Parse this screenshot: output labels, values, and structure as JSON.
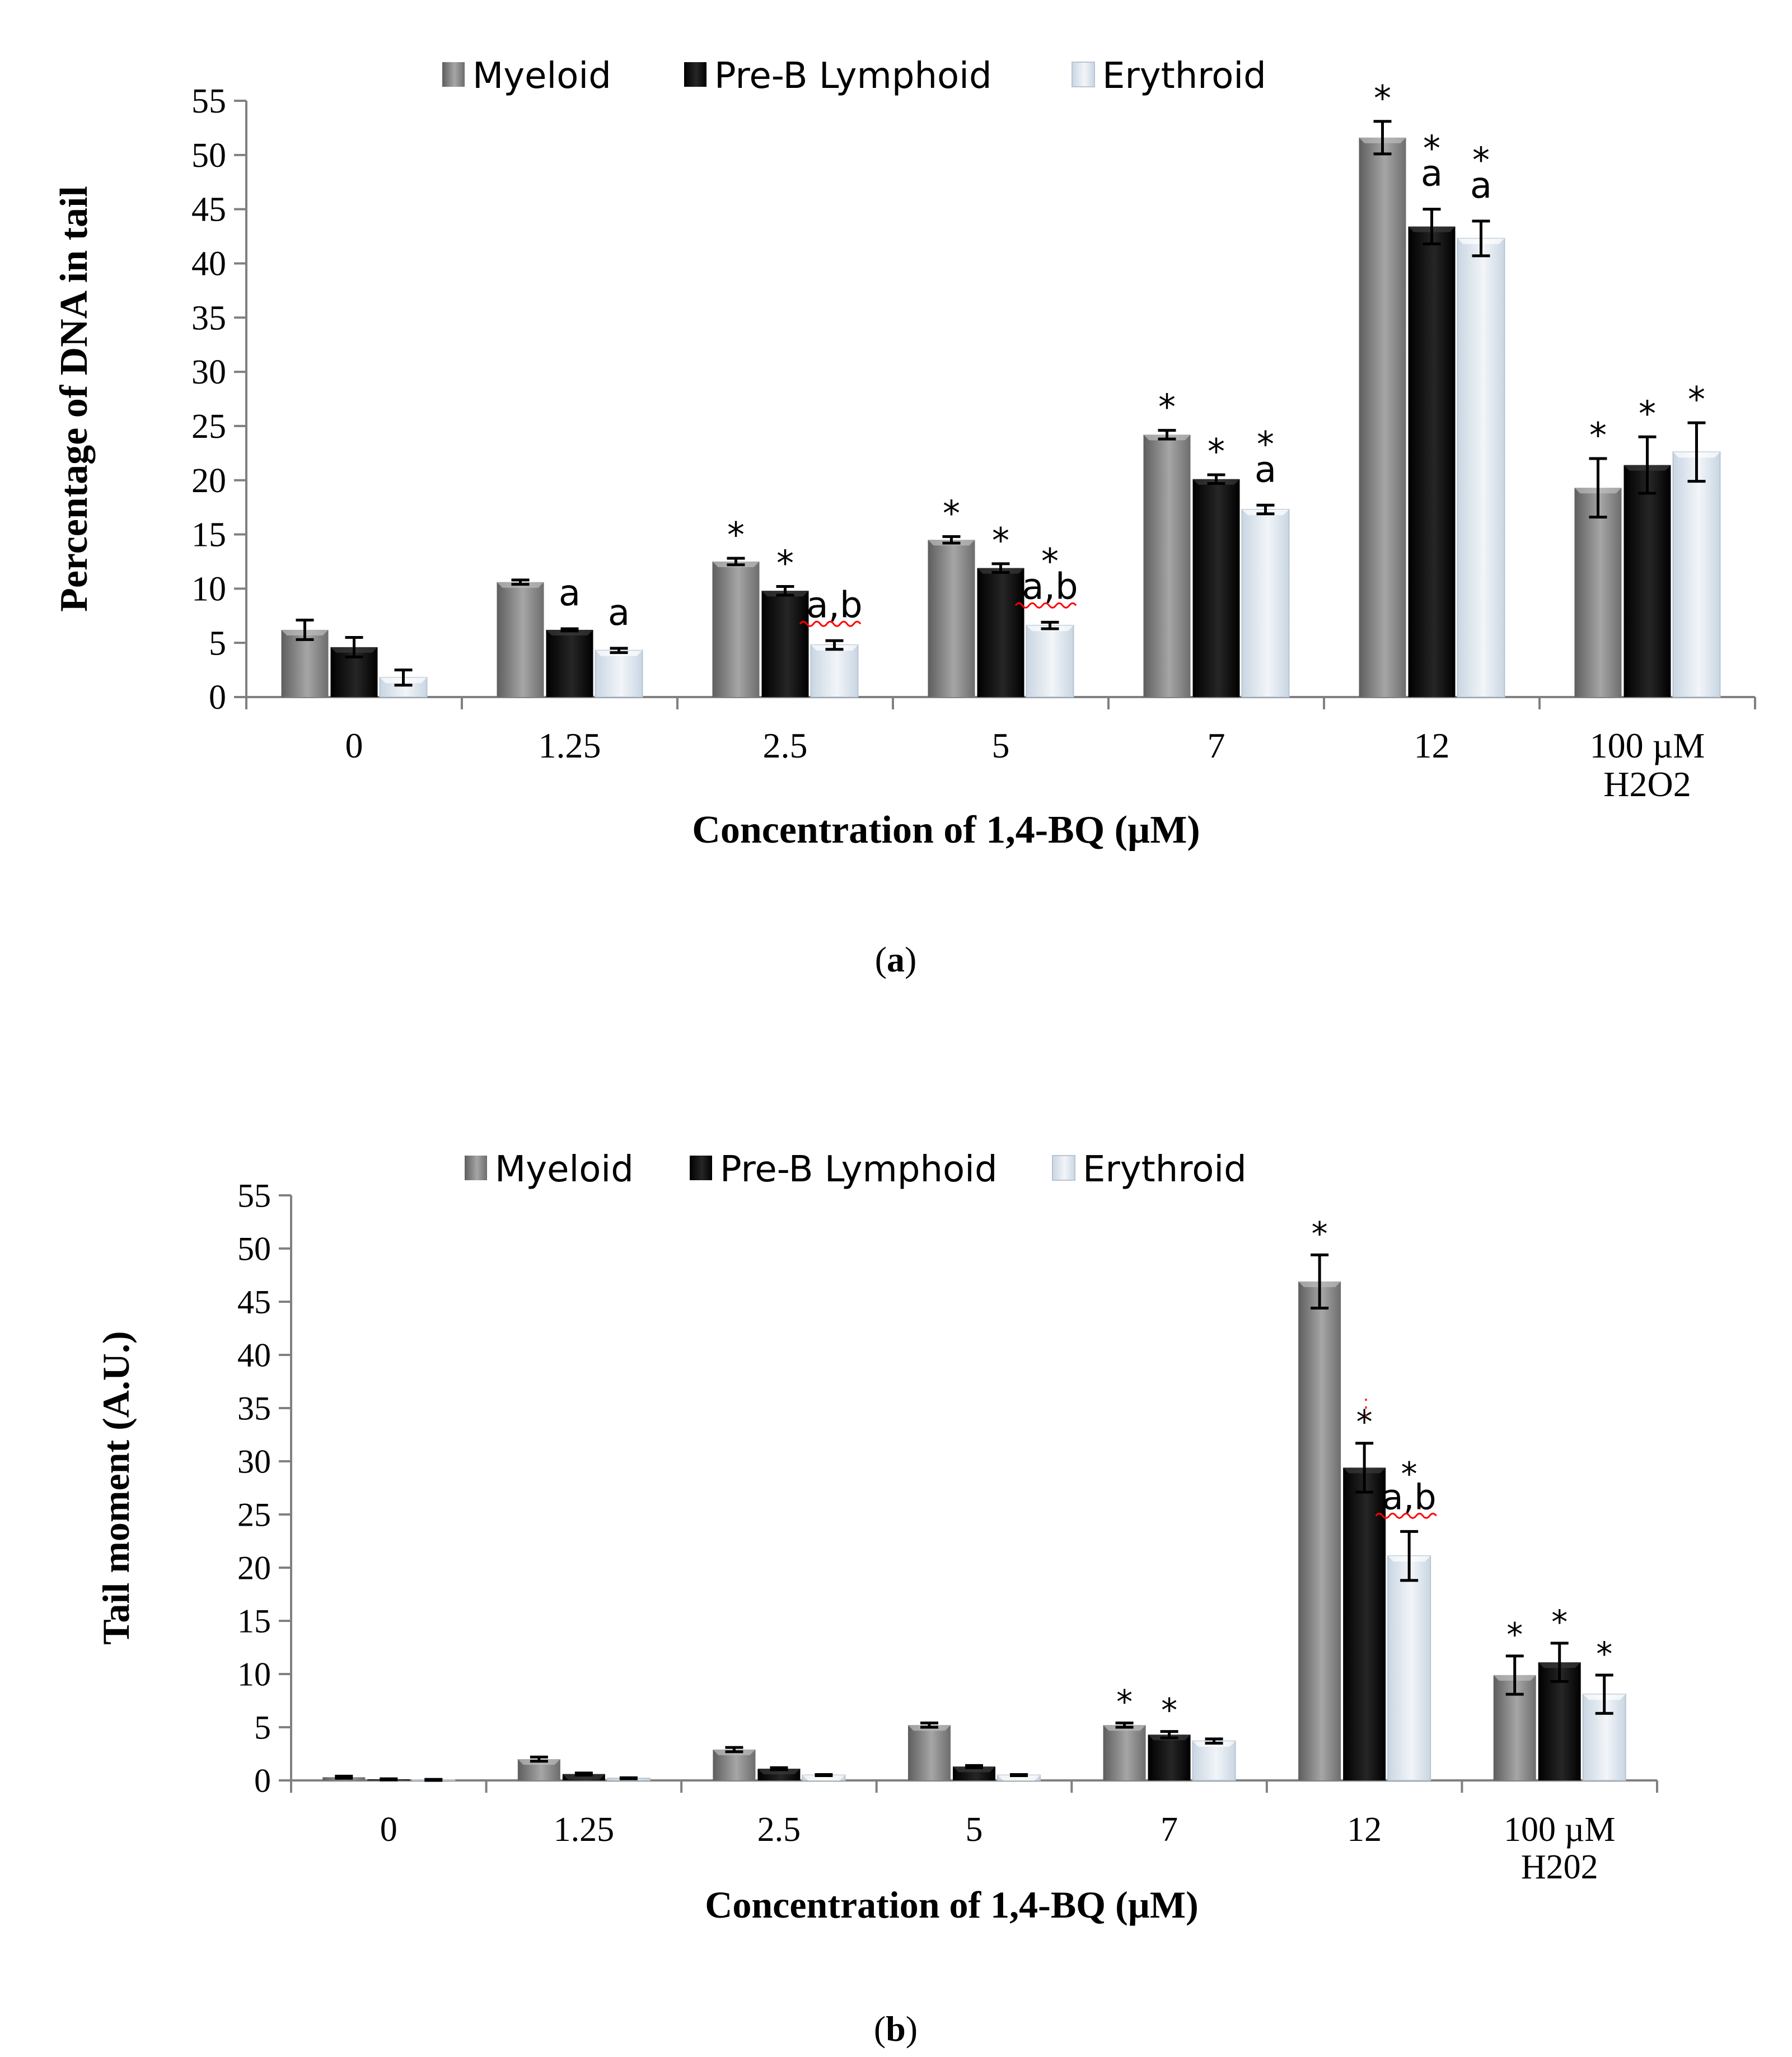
{
  "colors": {
    "myeloid": "#7f7f7f",
    "preb": "#0d0d0d",
    "erythroid": "#dce6f0",
    "axis": "#808080",
    "text": "#000000",
    "spellcheck": "#ff0000"
  },
  "chart_data": [
    {
      "type": "bar",
      "panel_label_open": "(",
      "panel_label": "a",
      "panel_label_close": ")",
      "ylabel": "Percentage of DNA in tail",
      "xlabel": "Concentration of 1,4-BQ (µM)",
      "categories": [
        "0",
        "1.25",
        "2.5",
        "5",
        "7",
        "12",
        "100 µM\nH2O2"
      ],
      "ylim": [
        0,
        55
      ],
      "yticks": [
        0,
        5,
        10,
        15,
        20,
        25,
        30,
        35,
        40,
        45,
        50,
        55
      ],
      "legend_position": "top",
      "grid": false,
      "series": [
        {
          "name": "Myeloid",
          "values": [
            6.2,
            10.6,
            12.5,
            14.5,
            24.2,
            51.6,
            19.3
          ],
          "errors": [
            0.9,
            0.2,
            0.3,
            0.3,
            0.4,
            1.5,
            2.7
          ],
          "annotations": [
            "",
            "",
            "*",
            "*",
            "*",
            "*",
            "*"
          ]
        },
        {
          "name": "Pre-B Lymphoid",
          "values": [
            4.6,
            6.2,
            9.8,
            11.9,
            20.1,
            43.4,
            21.4
          ],
          "errors": [
            0.9,
            0.1,
            0.4,
            0.4,
            0.4,
            1.6,
            2.6
          ],
          "annotations": [
            "",
            "a",
            "*",
            "*",
            "*",
            "*\na",
            "*"
          ]
        },
        {
          "name": "Erythroid",
          "values": [
            1.8,
            4.3,
            4.8,
            6.6,
            17.3,
            42.3,
            22.6
          ],
          "errors": [
            0.7,
            0.2,
            0.4,
            0.3,
            0.4,
            1.6,
            2.7
          ],
          "annotations": [
            "",
            "a",
            "a,b",
            "*\na,b",
            "*\na",
            "*\na",
            "*"
          ]
        }
      ]
    },
    {
      "type": "bar",
      "panel_label_open": "(",
      "panel_label": "b",
      "panel_label_close": ")",
      "ylabel": "Tail moment (A.U.)",
      "xlabel": "Concentration of  1,4-BQ (µM)",
      "categories": [
        "0",
        "1.25",
        "2.5",
        "5",
        "7",
        "12",
        "100 µM\nH202"
      ],
      "ylim": [
        0,
        55
      ],
      "yticks": [
        0,
        5,
        10,
        15,
        20,
        25,
        30,
        35,
        40,
        45,
        50,
        55
      ],
      "legend_position": "top",
      "grid": false,
      "series": [
        {
          "name": "Myeloid",
          "values": [
            0.3,
            2.0,
            2.9,
            5.2,
            5.2,
            46.9,
            9.9
          ],
          "errors": [
            0.1,
            0.2,
            0.2,
            0.2,
            0.2,
            2.5,
            1.8
          ],
          "annotations": [
            "",
            "",
            "",
            "",
            "*",
            "*",
            "*"
          ]
        },
        {
          "name": "Pre-B Lymphoid",
          "values": [
            0.1,
            0.6,
            1.1,
            1.3,
            4.3,
            29.4,
            11.1
          ],
          "errors": [
            0.05,
            0.1,
            0.1,
            0.1,
            0.3,
            2.3,
            1.8
          ],
          "annotations": [
            "",
            "",
            "",
            "",
            "*",
            "*",
            "*"
          ]
        },
        {
          "name": "Erythroid",
          "values": [
            0.05,
            0.2,
            0.5,
            0.5,
            3.7,
            21.1,
            8.1
          ],
          "errors": [
            0.05,
            0.05,
            0.05,
            0.05,
            0.2,
            2.3,
            1.8
          ],
          "annotations": [
            "",
            "",
            "",
            "",
            "",
            "*\na,b",
            "*"
          ]
        }
      ]
    }
  ]
}
